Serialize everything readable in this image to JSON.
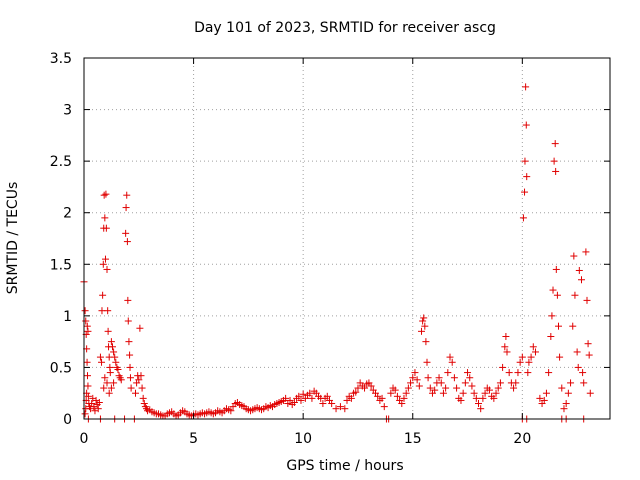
{
  "chart_data": {
    "type": "scatter",
    "title": "Day 101 of 2023, SRMTID for receiver ascg",
    "xlabel": "GPS time / hours",
    "ylabel": "SRMTID / TECUs",
    "xlim": [
      0,
      24
    ],
    "ylim": [
      0,
      3.5
    ],
    "xticks": [
      0,
      5,
      10,
      15,
      20
    ],
    "yticks": [
      0,
      0.5,
      1,
      1.5,
      2,
      2.5,
      3,
      3.5
    ],
    "xtick_labels": [
      "0",
      "5",
      "10",
      "15",
      "20"
    ],
    "ytick_labels": [
      "0",
      "0.5",
      "1",
      "1.5",
      "2",
      "2.5",
      "3",
      "3.5"
    ],
    "grid": true,
    "marker": "plus",
    "color": "#e00000",
    "series": [
      {
        "name": "ascg",
        "points": [
          [
            0.0,
            1.33
          ],
          [
            0.05,
            1.05
          ],
          [
            0.08,
            0.95
          ],
          [
            0.1,
            0.82
          ],
          [
            0.12,
            0.68
          ],
          [
            0.14,
            0.55
          ],
          [
            0.16,
            0.42
          ],
          [
            0.18,
            0.32
          ],
          [
            0.2,
            0.22
          ],
          [
            0.22,
            0.15
          ],
          [
            0.05,
            0.05
          ],
          [
            0.08,
            0.1
          ],
          [
            0.1,
            0.18
          ],
          [
            0.12,
            0.25
          ],
          [
            0.15,
            0.9
          ],
          [
            0.18,
            0.85
          ],
          [
            0.25,
            0.12
          ],
          [
            0.3,
            0.1
          ],
          [
            0.35,
            0.15
          ],
          [
            0.4,
            0.2
          ],
          [
            0.45,
            0.12
          ],
          [
            0.5,
            0.08
          ],
          [
            0.55,
            0.18
          ],
          [
            0.6,
            0.14
          ],
          [
            0.65,
            0.1
          ],
          [
            0.7,
            0.16
          ],
          [
            0.75,
            0.6
          ],
          [
            0.8,
            0.55
          ],
          [
            0.82,
            1.05
          ],
          [
            0.85,
            1.2
          ],
          [
            0.88,
            1.5
          ],
          [
            0.9,
            1.85
          ],
          [
            0.92,
            2.17
          ],
          [
            0.95,
            1.95
          ],
          [
            0.98,
            1.55
          ],
          [
            1.0,
            2.18
          ],
          [
            1.02,
            1.85
          ],
          [
            1.05,
            1.45
          ],
          [
            1.08,
            1.05
          ],
          [
            1.1,
            0.85
          ],
          [
            1.12,
            0.7
          ],
          [
            1.15,
            0.6
          ],
          [
            1.18,
            0.5
          ],
          [
            1.2,
            0.45
          ],
          [
            1.25,
            0.75
          ],
          [
            1.3,
            0.7
          ],
          [
            1.35,
            0.65
          ],
          [
            1.4,
            0.6
          ],
          [
            1.45,
            0.55
          ],
          [
            1.5,
            0.5
          ],
          [
            1.55,
            0.48
          ],
          [
            1.6,
            0.42
          ],
          [
            1.65,
            0.4
          ],
          [
            1.7,
            0.38
          ],
          [
            0.9,
            0.3
          ],
          [
            0.95,
            0.4
          ],
          [
            1.05,
            0.35
          ],
          [
            1.15,
            0.25
          ],
          [
            1.25,
            0.3
          ],
          [
            1.35,
            0.35
          ],
          [
            1.4,
            0.0
          ],
          [
            0.75,
            0.0
          ],
          [
            0.2,
            0.0
          ],
          [
            1.9,
            1.8
          ],
          [
            1.92,
            2.05
          ],
          [
            1.95,
            2.17
          ],
          [
            1.98,
            1.72
          ],
          [
            2.0,
            1.15
          ],
          [
            2.02,
            0.95
          ],
          [
            2.05,
            0.75
          ],
          [
            2.08,
            0.62
          ],
          [
            2.1,
            0.5
          ],
          [
            2.12,
            0.4
          ],
          [
            2.15,
            0.3
          ],
          [
            1.85,
            0.0
          ],
          [
            2.3,
            0.0
          ],
          [
            2.35,
            0.25
          ],
          [
            2.4,
            0.35
          ],
          [
            2.45,
            0.42
          ],
          [
            2.5,
            0.38
          ],
          [
            2.55,
            0.88
          ],
          [
            2.6,
            0.42
          ],
          [
            2.65,
            0.3
          ],
          [
            2.7,
            0.2
          ],
          [
            2.75,
            0.15
          ],
          [
            2.8,
            0.12
          ],
          [
            2.85,
            0.1
          ],
          [
            2.9,
            0.08
          ],
          [
            3.0,
            0.09
          ],
          [
            3.1,
            0.07
          ],
          [
            3.2,
            0.06
          ],
          [
            3.3,
            0.05
          ],
          [
            3.4,
            0.05
          ],
          [
            3.5,
            0.04
          ],
          [
            3.6,
            0.03
          ],
          [
            3.7,
            0.03
          ],
          [
            3.8,
            0.05
          ],
          [
            3.9,
            0.06
          ],
          [
            4.0,
            0.07
          ],
          [
            4.1,
            0.05
          ],
          [
            4.2,
            0.03
          ],
          [
            4.3,
            0.04
          ],
          [
            4.4,
            0.06
          ],
          [
            4.5,
            0.08
          ],
          [
            4.6,
            0.07
          ],
          [
            4.7,
            0.05
          ],
          [
            4.8,
            0.04
          ],
          [
            4.9,
            0.03
          ],
          [
            5.0,
            0.04
          ],
          [
            5.1,
            0.05
          ],
          [
            5.2,
            0.04
          ],
          [
            5.3,
            0.05
          ],
          [
            5.4,
            0.06
          ],
          [
            5.5,
            0.05
          ],
          [
            5.6,
            0.06
          ],
          [
            5.7,
            0.07
          ],
          [
            5.8,
            0.06
          ],
          [
            5.9,
            0.05
          ],
          [
            6.0,
            0.06
          ],
          [
            6.1,
            0.08
          ],
          [
            6.2,
            0.07
          ],
          [
            6.3,
            0.06
          ],
          [
            6.4,
            0.08
          ],
          [
            6.5,
            0.1
          ],
          [
            6.6,
            0.09
          ],
          [
            6.7,
            0.08
          ],
          [
            6.8,
            0.12
          ],
          [
            6.9,
            0.15
          ],
          [
            7.0,
            0.16
          ],
          [
            7.1,
            0.14
          ],
          [
            7.2,
            0.13
          ],
          [
            7.3,
            0.12
          ],
          [
            7.4,
            0.1
          ],
          [
            7.5,
            0.09
          ],
          [
            7.6,
            0.08
          ],
          [
            7.7,
            0.09
          ],
          [
            7.8,
            0.1
          ],
          [
            7.9,
            0.11
          ],
          [
            8.0,
            0.1
          ],
          [
            8.1,
            0.09
          ],
          [
            8.2,
            0.1
          ],
          [
            8.3,
            0.12
          ],
          [
            8.4,
            0.11
          ],
          [
            8.5,
            0.13
          ],
          [
            8.6,
            0.12
          ],
          [
            8.7,
            0.14
          ],
          [
            8.8,
            0.15
          ],
          [
            8.9,
            0.16
          ],
          [
            9.0,
            0.17
          ],
          [
            9.1,
            0.18
          ],
          [
            9.2,
            0.2
          ],
          [
            9.3,
            0.15
          ],
          [
            9.4,
            0.18
          ],
          [
            9.5,
            0.14
          ],
          [
            9.6,
            0.16
          ],
          [
            9.7,
            0.2
          ],
          [
            9.8,
            0.22
          ],
          [
            9.9,
            0.18
          ],
          [
            10.0,
            0.24
          ],
          [
            10.1,
            0.2
          ],
          [
            10.2,
            0.23
          ],
          [
            10.3,
            0.25
          ],
          [
            10.4,
            0.2
          ],
          [
            10.5,
            0.27
          ],
          [
            10.6,
            0.25
          ],
          [
            10.7,
            0.22
          ],
          [
            10.8,
            0.2
          ],
          [
            10.9,
            0.15
          ],
          [
            11.0,
            0.2
          ],
          [
            11.1,
            0.22
          ],
          [
            11.2,
            0.18
          ],
          [
            11.3,
            0.15
          ],
          [
            11.5,
            0.1
          ],
          [
            11.7,
            0.12
          ],
          [
            11.9,
            0.1
          ],
          [
            12.0,
            0.18
          ],
          [
            12.1,
            0.22
          ],
          [
            12.2,
            0.2
          ],
          [
            12.3,
            0.25
          ],
          [
            12.4,
            0.26
          ],
          [
            12.5,
            0.3
          ],
          [
            12.6,
            0.35
          ],
          [
            12.7,
            0.32
          ],
          [
            12.8,
            0.3
          ],
          [
            12.9,
            0.34
          ],
          [
            13.0,
            0.35
          ],
          [
            13.1,
            0.32
          ],
          [
            13.2,
            0.28
          ],
          [
            13.3,
            0.25
          ],
          [
            13.4,
            0.22
          ],
          [
            13.5,
            0.18
          ],
          [
            13.6,
            0.2
          ],
          [
            13.7,
            0.12
          ],
          [
            13.9,
            0.0
          ],
          [
            13.8,
            0.0
          ],
          [
            14.0,
            0.25
          ],
          [
            14.1,
            0.3
          ],
          [
            14.2,
            0.28
          ],
          [
            14.3,
            0.22
          ],
          [
            14.4,
            0.18
          ],
          [
            14.5,
            0.15
          ],
          [
            14.6,
            0.2
          ],
          [
            14.7,
            0.25
          ],
          [
            14.8,
            0.3
          ],
          [
            14.9,
            0.35
          ],
          [
            15.0,
            0.4
          ],
          [
            15.1,
            0.45
          ],
          [
            15.2,
            0.38
          ],
          [
            15.3,
            0.32
          ],
          [
            15.4,
            0.85
          ],
          [
            15.45,
            0.95
          ],
          [
            15.5,
            0.98
          ],
          [
            15.55,
            0.9
          ],
          [
            15.6,
            0.75
          ],
          [
            15.65,
            0.55
          ],
          [
            15.7,
            0.4
          ],
          [
            15.8,
            0.3
          ],
          [
            15.9,
            0.25
          ],
          [
            16.0,
            0.28
          ],
          [
            16.1,
            0.35
          ],
          [
            16.2,
            0.4
          ],
          [
            16.3,
            0.35
          ],
          [
            16.4,
            0.25
          ],
          [
            16.5,
            0.3
          ],
          [
            16.6,
            0.45
          ],
          [
            16.7,
            0.6
          ],
          [
            16.8,
            0.55
          ],
          [
            16.9,
            0.4
          ],
          [
            17.0,
            0.3
          ],
          [
            17.1,
            0.2
          ],
          [
            17.2,
            0.18
          ],
          [
            17.3,
            0.25
          ],
          [
            17.4,
            0.35
          ],
          [
            17.5,
            0.45
          ],
          [
            17.6,
            0.4
          ],
          [
            17.7,
            0.32
          ],
          [
            17.8,
            0.25
          ],
          [
            17.9,
            0.2
          ],
          [
            18.0,
            0.15
          ],
          [
            18.1,
            0.1
          ],
          [
            18.2,
            0.2
          ],
          [
            18.3,
            0.25
          ],
          [
            18.4,
            0.3
          ],
          [
            18.5,
            0.28
          ],
          [
            18.6,
            0.22
          ],
          [
            18.7,
            0.2
          ],
          [
            18.8,
            0.25
          ],
          [
            18.9,
            0.3
          ],
          [
            19.0,
            0.35
          ],
          [
            19.1,
            0.5
          ],
          [
            19.2,
            0.7
          ],
          [
            19.25,
            0.8
          ],
          [
            19.3,
            0.65
          ],
          [
            19.4,
            0.45
          ],
          [
            19.5,
            0.35
          ],
          [
            19.6,
            0.3
          ],
          [
            19.7,
            0.35
          ],
          [
            19.8,
            0.45
          ],
          [
            19.9,
            0.55
          ],
          [
            20.0,
            0.6
          ],
          [
            20.05,
            1.95
          ],
          [
            20.1,
            2.2
          ],
          [
            20.12,
            2.5
          ],
          [
            20.15,
            3.22
          ],
          [
            20.18,
            2.85
          ],
          [
            20.2,
            2.35
          ],
          [
            20.25,
            0.45
          ],
          [
            20.3,
            0.55
          ],
          [
            20.4,
            0.6
          ],
          [
            20.5,
            0.7
          ],
          [
            20.6,
            0.65
          ],
          [
            20.0,
            0.0
          ],
          [
            20.2,
            0.0
          ],
          [
            20.8,
            0.2
          ],
          [
            20.9,
            0.15
          ],
          [
            21.0,
            0.18
          ],
          [
            21.1,
            0.25
          ],
          [
            21.2,
            0.45
          ],
          [
            21.3,
            0.8
          ],
          [
            21.35,
            1.0
          ],
          [
            21.4,
            1.25
          ],
          [
            21.45,
            2.5
          ],
          [
            21.5,
            2.67
          ],
          [
            21.52,
            2.4
          ],
          [
            21.55,
            1.45
          ],
          [
            21.6,
            1.2
          ],
          [
            21.65,
            0.9
          ],
          [
            21.7,
            0.6
          ],
          [
            21.8,
            0.3
          ],
          [
            21.9,
            0.1
          ],
          [
            22.0,
            0.15
          ],
          [
            22.1,
            0.25
          ],
          [
            22.2,
            0.35
          ],
          [
            22.3,
            0.9
          ],
          [
            22.35,
            1.58
          ],
          [
            22.4,
            1.2
          ],
          [
            22.5,
            0.65
          ],
          [
            22.55,
            0.5
          ],
          [
            22.6,
            1.44
          ],
          [
            22.7,
            1.35
          ],
          [
            22.75,
            0.45
          ],
          [
            22.8,
            0.35
          ],
          [
            22.9,
            1.62
          ],
          [
            22.95,
            1.15
          ],
          [
            23.0,
            0.73
          ],
          [
            23.05,
            0.62
          ],
          [
            23.1,
            0.25
          ],
          [
            21.8,
            0.0
          ],
          [
            22.0,
            0.0
          ],
          [
            22.8,
            0.0
          ]
        ]
      }
    ]
  }
}
